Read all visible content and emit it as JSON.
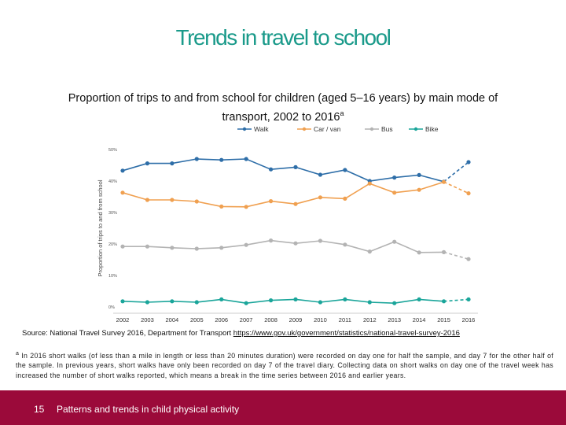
{
  "slide": {
    "title": "Trends in travel to school",
    "page_number": "15",
    "footer_text": "Patterns and trends in child physical activity"
  },
  "chart_caption": {
    "title": "Proportion of trips to and from school for children (aged 5–16 years) by main mode of transport, 2002 to 2016",
    "title_marker": "a"
  },
  "source": {
    "text": "Source: National Travel Survey 2016, Department for Transport ",
    "link": "https://www.gov.uk/government/statistics/national-travel-survey-2016"
  },
  "footnote": {
    "marker": "a",
    "text": "In 2016 short walks (of less than a mile in length or less than 20 minutes duration) were recorded on day one for half the sample, and day 7 for the other half of the sample. In previous years, short walks have only been recorded on day 7 of the travel diary. Collecting data on short walks on day one of the travel week has increased the number of short walks reported, which means a break in the time series between 2016 and earlier years."
  },
  "chart_data": {
    "type": "line",
    "categories": [
      "2002",
      "2003",
      "2004",
      "2005",
      "2006",
      "2007",
      "2008",
      "2009",
      "2010",
      "2011",
      "2012",
      "2013",
      "2014",
      "2015",
      "2016"
    ],
    "ylabel": "Proportion of trips to and from school",
    "ylim": [
      0,
      50
    ],
    "ytick_labels": [
      "0%",
      "10%",
      "20%",
      "30%",
      "40%",
      "50%"
    ],
    "legend_position": "top",
    "grid": false,
    "dashed_last_segment": true,
    "series": [
      {
        "name": "Walk",
        "color": "#2e6ea8",
        "values": [
          43.3,
          45.6,
          45.6,
          47.0,
          46.7,
          47.0,
          43.7,
          44.4,
          42.0,
          43.5,
          40.0,
          41.1,
          41.9,
          39.8,
          46.0
        ]
      },
      {
        "name": "Car / van",
        "color": "#f0a050",
        "values": [
          36.3,
          34.0,
          34.0,
          33.5,
          31.9,
          31.8,
          33.6,
          32.7,
          34.8,
          34.4,
          39.2,
          36.3,
          37.2,
          39.7,
          36.1
        ]
      },
      {
        "name": "Bus",
        "color": "#b3b3b3",
        "values": [
          19.2,
          19.2,
          18.8,
          18.5,
          18.8,
          19.7,
          21.1,
          20.2,
          21.0,
          19.8,
          17.6,
          20.7,
          17.3,
          17.4,
          15.2
        ]
      },
      {
        "name": "Bike",
        "color": "#1aa59a",
        "values": [
          1.8,
          1.5,
          1.8,
          1.5,
          2.4,
          1.2,
          2.1,
          2.4,
          1.5,
          2.4,
          1.5,
          1.2,
          2.4,
          1.8,
          2.4
        ]
      }
    ]
  }
}
